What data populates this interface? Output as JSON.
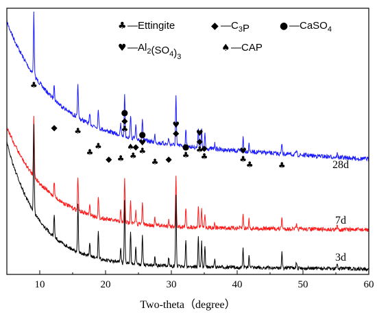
{
  "chart_data": {
    "type": "line",
    "xlabel": "Two-theta（degree）",
    "ylabel": "",
    "xlim": [
      5,
      60
    ],
    "x_ticks": [
      10,
      20,
      30,
      40,
      50,
      60
    ],
    "y_ticks_shown": false,
    "grid": false,
    "legend_placement": "top-right",
    "legend": [
      {
        "symbol": "clubs",
        "glyph": "♣",
        "label": "—Ettingite"
      },
      {
        "symbol": "diamond",
        "glyph": "◆",
        "label": "—C",
        "sub": "3",
        "tail": "P"
      },
      {
        "symbol": "circle",
        "glyph": "●",
        "label": "—CaSO",
        "sub": "4",
        "tail": ""
      },
      {
        "symbol": "heart",
        "glyph": "♥",
        "label": "—Al",
        "sub": "2",
        "mid": "(SO",
        "sub2": "4",
        "tail": ")",
        "sub3": "3"
      },
      {
        "symbol": "spade",
        "glyph": "♠",
        "label": "—CAP"
      }
    ],
    "peaks": [
      {
        "x": 9.1,
        "h": 1.0
      },
      {
        "x": 12.2,
        "h": 0.25
      },
      {
        "x": 15.8,
        "h": 0.55
      },
      {
        "x": 17.6,
        "h": 0.15
      },
      {
        "x": 18.9,
        "h": 0.32
      },
      {
        "x": 22.3,
        "h": 0.18
      },
      {
        "x": 22.9,
        "h": 0.7
      },
      {
        "x": 23.8,
        "h": 0.38
      },
      {
        "x": 24.6,
        "h": 0.2
      },
      {
        "x": 25.6,
        "h": 0.35
      },
      {
        "x": 27.5,
        "h": 0.12
      },
      {
        "x": 29.6,
        "h": 0.1
      },
      {
        "x": 30.7,
        "h": 0.8
      },
      {
        "x": 32.2,
        "h": 0.3
      },
      {
        "x": 34.1,
        "h": 0.34
      },
      {
        "x": 34.6,
        "h": 0.28
      },
      {
        "x": 35.1,
        "h": 0.22
      },
      {
        "x": 36.6,
        "h": 0.08
      },
      {
        "x": 40.9,
        "h": 0.22
      },
      {
        "x": 41.8,
        "h": 0.15
      },
      {
        "x": 46.8,
        "h": 0.18
      },
      {
        "x": 49.0,
        "h": 0.06
      },
      {
        "x": 55.2,
        "h": 0.06
      }
    ],
    "series": [
      {
        "name": "28d",
        "color": "#1a1aff",
        "label": "28d"
      },
      {
        "name": "7d",
        "color": "#ff1a1a",
        "label": "7d"
      },
      {
        "name": "3d",
        "color": "#000000",
        "label": "3d"
      }
    ],
    "markers": [
      {
        "x": 9.1,
        "stack": [
          "♣"
        ]
      },
      {
        "x": 12.2,
        "stack": [
          "◆"
        ]
      },
      {
        "x": 15.8,
        "stack": [
          "♣"
        ]
      },
      {
        "x": 17.6,
        "stack": [
          "♣"
        ]
      },
      {
        "x": 18.9,
        "stack": [
          "♣"
        ]
      },
      {
        "x": 20.5,
        "stack": [
          "◆"
        ]
      },
      {
        "x": 22.3,
        "stack": [
          "♣"
        ]
      },
      {
        "x": 22.9,
        "stack": [
          "●",
          "◆",
          "♣"
        ]
      },
      {
        "x": 23.8,
        "stack": [
          "♠"
        ]
      },
      {
        "x": 24.6,
        "stack": [
          "◆"
        ]
      },
      {
        "x": 24.2,
        "stack": [
          "♣"
        ],
        "dy": 1
      },
      {
        "x": 25.6,
        "stack": [
          "●",
          "♥",
          "♣"
        ]
      },
      {
        "x": 27.5,
        "stack": [
          "♣"
        ]
      },
      {
        "x": 29.6,
        "stack": [
          "◆"
        ]
      },
      {
        "x": 30.7,
        "stack": [
          "♥",
          "◆"
        ]
      },
      {
        "x": 32.2,
        "stack": [
          "●",
          "♣"
        ]
      },
      {
        "x": 34.3,
        "stack": [
          "♥",
          "◆",
          "♣"
        ]
      },
      {
        "x": 35.0,
        "stack": [
          "◆",
          "♣"
        ]
      },
      {
        "x": 40.9,
        "stack": [
          "♥",
          "♣"
        ]
      },
      {
        "x": 41.9,
        "stack": [
          "♣"
        ]
      },
      {
        "x": 46.8,
        "stack": [
          "♣"
        ]
      }
    ]
  }
}
